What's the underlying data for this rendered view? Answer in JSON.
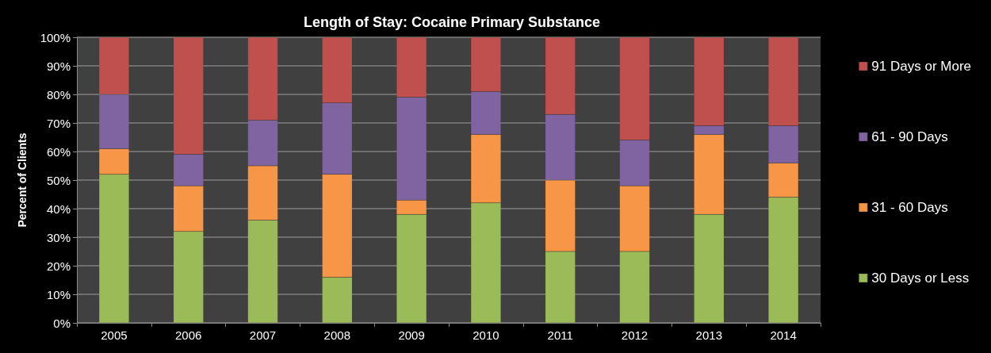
{
  "chart_data": {
    "type": "bar",
    "title": "Length of Stay: Cocaine Primary Substance",
    "ylabel": "Percent of Clients",
    "stacked": true,
    "categories": [
      "2005",
      "2006",
      "2007",
      "2008",
      "2009",
      "2010",
      "2011",
      "2012",
      "2013",
      "2014"
    ],
    "series": [
      {
        "name": "30 Days or Less",
        "color": "#9bbb59",
        "values": [
          52,
          32,
          36,
          16,
          38,
          42,
          25,
          25,
          38,
          44
        ]
      },
      {
        "name": "31 - 60 Days",
        "color": "#f79646",
        "values": [
          9,
          16,
          19,
          36,
          5,
          24,
          25,
          23,
          28,
          12
        ]
      },
      {
        "name": "61 - 90 Days",
        "color": "#8064a2",
        "values": [
          19,
          11,
          16,
          25,
          36,
          15,
          23,
          16,
          3,
          13
        ]
      },
      {
        "name": "91 Days or More",
        "color": "#c0504d",
        "values": [
          20,
          41,
          29,
          23,
          21,
          19,
          27,
          36,
          31,
          31
        ]
      }
    ],
    "ylim": [
      0,
      100
    ],
    "yticks": [
      {
        "value": 0,
        "label": "0%"
      },
      {
        "value": 10,
        "label": "10%"
      },
      {
        "value": 20,
        "label": "20%"
      },
      {
        "value": 30,
        "label": "30%"
      },
      {
        "value": 40,
        "label": "40%"
      },
      {
        "value": 50,
        "label": "50%"
      },
      {
        "value": 60,
        "label": "60%"
      },
      {
        "value": 70,
        "label": "70%"
      },
      {
        "value": 80,
        "label": "80%"
      },
      {
        "value": 90,
        "label": "90%"
      },
      {
        "value": 100,
        "label": "100%"
      }
    ],
    "grid": "y",
    "legend": "right"
  }
}
